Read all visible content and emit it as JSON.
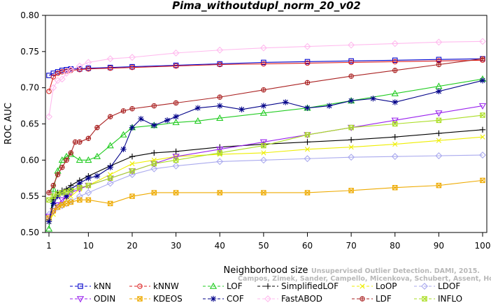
{
  "chart_data": {
    "type": "line",
    "title": "Pima_withoutdupl_norm_20_v02",
    "xlabel": "Neighborhood size",
    "ylabel": "ROC AUC",
    "xlim": [
      1,
      100
    ],
    "ylim": [
      0.5,
      0.8
    ],
    "xticks": [
      1,
      10,
      20,
      30,
      40,
      50,
      60,
      70,
      80,
      90,
      100
    ],
    "yticks": [
      0.5,
      0.55,
      0.6,
      0.65,
      0.7,
      0.75,
      0.8
    ],
    "legend_position": "bottom",
    "watermark": [
      "Campos, Zimek, Sander, Campello, Micenkova, Schubert, Assent, Houle",
      "Unsupervised Outlier Detection. DAMI, 2015."
    ],
    "series": [
      {
        "name": "kNN",
        "color": "#0000cc",
        "marker": "square",
        "x": [
          1,
          2,
          3,
          4,
          5,
          6,
          8,
          10,
          15,
          20,
          30,
          40,
          50,
          60,
          70,
          80,
          90,
          100
        ],
        "y": [
          0.717,
          0.72,
          0.722,
          0.724,
          0.725,
          0.726,
          0.726,
          0.727,
          0.728,
          0.729,
          0.731,
          0.733,
          0.735,
          0.736,
          0.737,
          0.738,
          0.739,
          0.74
        ]
      },
      {
        "name": "kNNW",
        "color": "#dd2222",
        "marker": "circle",
        "x": [
          1,
          2,
          3,
          4,
          5,
          6,
          8,
          10,
          15,
          20,
          30,
          40,
          50,
          60,
          70,
          80,
          90,
          100
        ],
        "y": [
          0.695,
          0.715,
          0.72,
          0.722,
          0.723,
          0.724,
          0.725,
          0.726,
          0.727,
          0.728,
          0.73,
          0.732,
          0.733,
          0.734,
          0.735,
          0.736,
          0.737,
          0.738
        ]
      },
      {
        "name": "LOF",
        "color": "#22cc22",
        "marker": "triangle",
        "x": [
          1,
          2,
          3,
          4,
          5,
          6,
          8,
          10,
          12,
          15,
          18,
          20,
          25,
          30,
          35,
          40,
          50,
          60,
          70,
          80,
          90,
          100
        ],
        "y": [
          0.505,
          0.56,
          0.585,
          0.6,
          0.605,
          0.608,
          0.6,
          0.6,
          0.605,
          0.62,
          0.635,
          0.645,
          0.648,
          0.652,
          0.654,
          0.658,
          0.665,
          0.672,
          0.682,
          0.692,
          0.702,
          0.712
        ]
      },
      {
        "name": "SimplifiedLOF",
        "color": "#000000",
        "marker": "plus",
        "x": [
          1,
          2,
          3,
          4,
          5,
          6,
          8,
          10,
          15,
          20,
          25,
          30,
          40,
          50,
          60,
          70,
          80,
          90,
          100
        ],
        "y": [
          0.517,
          0.545,
          0.555,
          0.558,
          0.56,
          0.565,
          0.572,
          0.578,
          0.592,
          0.605,
          0.61,
          0.612,
          0.618,
          0.622,
          0.625,
          0.628,
          0.632,
          0.637,
          0.642
        ]
      },
      {
        "name": "LoOP",
        "color": "#eeee00",
        "marker": "x",
        "x": [
          1,
          2,
          3,
          4,
          5,
          6,
          8,
          10,
          15,
          20,
          25,
          30,
          40,
          50,
          60,
          70,
          80,
          90,
          100
        ],
        "y": [
          0.515,
          0.525,
          0.535,
          0.54,
          0.545,
          0.55,
          0.56,
          0.565,
          0.58,
          0.595,
          0.6,
          0.605,
          0.608,
          0.61,
          0.615,
          0.618,
          0.622,
          0.627,
          0.632
        ]
      },
      {
        "name": "LDOF",
        "color": "#aaaaee",
        "marker": "diamond",
        "x": [
          1,
          2,
          3,
          4,
          5,
          6,
          8,
          10,
          15,
          20,
          25,
          30,
          40,
          50,
          60,
          70,
          80,
          90,
          100
        ],
        "y": [
          0.525,
          0.53,
          0.535,
          0.537,
          0.54,
          0.543,
          0.55,
          0.555,
          0.568,
          0.58,
          0.588,
          0.592,
          0.598,
          0.6,
          0.602,
          0.604,
          0.605,
          0.606,
          0.607
        ]
      },
      {
        "name": "ODIN",
        "color": "#9922ee",
        "marker": "triangle-down",
        "x": [
          1,
          2,
          3,
          4,
          5,
          6,
          8,
          10,
          15,
          20,
          25,
          30,
          40,
          50,
          60,
          70,
          80,
          90,
          100
        ],
        "y": [
          0.522,
          0.53,
          0.538,
          0.545,
          0.55,
          0.555,
          0.56,
          0.565,
          0.575,
          0.585,
          0.595,
          0.605,
          0.615,
          0.625,
          0.635,
          0.645,
          0.655,
          0.665,
          0.675
        ]
      },
      {
        "name": "KDEOS",
        "color": "#eeaa00",
        "marker": "square-x",
        "x": [
          1,
          2,
          3,
          4,
          5,
          6,
          8,
          10,
          15,
          20,
          25,
          30,
          40,
          50,
          60,
          70,
          80,
          90,
          100
        ],
        "y": [
          0.52,
          0.53,
          0.535,
          0.538,
          0.54,
          0.542,
          0.545,
          0.545,
          0.54,
          0.55,
          0.555,
          0.555,
          0.555,
          0.555,
          0.555,
          0.558,
          0.562,
          0.565,
          0.572
        ]
      },
      {
        "name": "COF",
        "color": "#000088",
        "marker": "star",
        "x": [
          1,
          2,
          3,
          4,
          5,
          6,
          8,
          10,
          12,
          15,
          18,
          20,
          22,
          25,
          28,
          30,
          35,
          40,
          45,
          50,
          55,
          60,
          65,
          70,
          75,
          80,
          90,
          100
        ],
        "y": [
          0.515,
          0.54,
          0.55,
          0.555,
          0.55,
          0.56,
          0.568,
          0.575,
          0.578,
          0.59,
          0.615,
          0.645,
          0.657,
          0.648,
          0.655,
          0.66,
          0.672,
          0.675,
          0.67,
          0.675,
          0.68,
          0.672,
          0.675,
          0.682,
          0.685,
          0.68,
          0.695,
          0.71
        ]
      },
      {
        "name": "FastABOD",
        "color": "#ffbbee",
        "marker": "diamond",
        "x": [
          1,
          2,
          3,
          4,
          5,
          6,
          8,
          10,
          15,
          20,
          30,
          40,
          50,
          60,
          70,
          80,
          90,
          100
        ],
        "y": [
          0.66,
          0.7,
          0.71,
          0.712,
          0.72,
          0.725,
          0.73,
          0.735,
          0.74,
          0.742,
          0.748,
          0.752,
          0.755,
          0.757,
          0.759,
          0.761,
          0.763,
          0.764
        ]
      },
      {
        "name": "LDF",
        "color": "#aa2222",
        "marker": "circle-plus",
        "x": [
          1,
          2,
          3,
          4,
          5,
          6,
          7,
          8,
          10,
          12,
          15,
          18,
          20,
          25,
          30,
          40,
          50,
          60,
          70,
          80,
          90,
          100
        ],
        "y": [
          0.555,
          0.565,
          0.58,
          0.59,
          0.6,
          0.61,
          0.625,
          0.625,
          0.63,
          0.645,
          0.66,
          0.668,
          0.671,
          0.675,
          0.679,
          0.687,
          0.697,
          0.707,
          0.716,
          0.724,
          0.732,
          0.74
        ]
      },
      {
        "name": "INFLO",
        "color": "#aadd22",
        "marker": "square-x",
        "x": [
          1,
          2,
          3,
          4,
          5,
          6,
          8,
          10,
          15,
          20,
          25,
          30,
          40,
          50,
          60,
          70,
          80,
          90,
          100
        ],
        "y": [
          0.545,
          0.55,
          0.553,
          0.555,
          0.556,
          0.558,
          0.562,
          0.565,
          0.575,
          0.585,
          0.595,
          0.6,
          0.61,
          0.62,
          0.635,
          0.645,
          0.65,
          0.655,
          0.662
        ]
      }
    ]
  }
}
